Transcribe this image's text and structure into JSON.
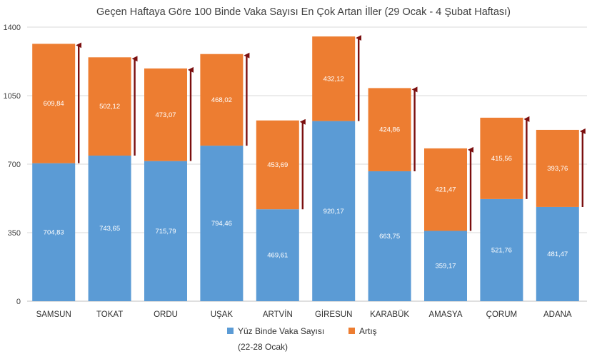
{
  "chart_data": {
    "type": "bar",
    "stacked": true,
    "title": "Geçen Haftaya Göre 100 Binde Vaka Sayısı En Çok Artan İller (29 Ocak - 4 Şubat Haftası)",
    "categories": [
      "SAMSUN",
      "TOKAT",
      "ORDU",
      "UŞAK",
      "ARTVİN",
      "GİRESUN",
      "KARABÜK",
      "AMASYA",
      "ÇORUM",
      "ADANA"
    ],
    "series": [
      {
        "name": "Yüz Binde Vaka Sayısı (22-28 Ocak)",
        "color": "#5b9bd5",
        "values": [
          704.83,
          743.65,
          715.79,
          794.46,
          469.61,
          920.17,
          663.75,
          359.17,
          521.76,
          481.47
        ],
        "labels": [
          "704,83",
          "743,65",
          "715,79",
          "794,46",
          "469,61",
          "920,17",
          "663,75",
          "359,17",
          "521,76",
          "481,47"
        ]
      },
      {
        "name": "Artış",
        "color": "#ed7d31",
        "values": [
          609.84,
          502.12,
          473.07,
          468.02,
          453.69,
          432.12,
          424.86,
          421.47,
          415.56,
          393.76
        ],
        "labels": [
          "609,84",
          "502,12",
          "473,07",
          "468,02",
          "453,69",
          "432,12",
          "424,86",
          "421,47",
          "415,56",
          "393,76"
        ]
      }
    ],
    "yticks": [
      "0",
      "350",
      "700",
      "1050",
      "1400"
    ],
    "ytick_values": [
      0,
      350,
      700,
      1050,
      1400
    ],
    "ylim": [
      0,
      1400
    ],
    "xlabel": "",
    "ylabel": "",
    "grid": true,
    "legend_position": "bottom",
    "arrow_color": "#7b0f0f"
  }
}
